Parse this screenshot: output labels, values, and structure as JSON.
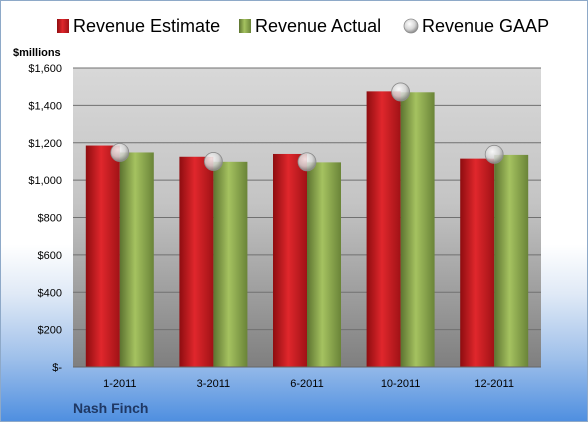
{
  "chart_data": {
    "type": "bar",
    "ylabel": "$millions",
    "company": "Nash Finch",
    "categories": [
      "1-2011",
      "3-2011",
      "6-2011",
      "10-2011",
      "12-2011"
    ],
    "series": [
      {
        "name": "Revenue Estimate",
        "kind": "bar",
        "color": "#c8161d",
        "values": [
          1185,
          1125,
          1140,
          1475,
          1115
        ]
      },
      {
        "name": "Revenue Actual",
        "kind": "bar",
        "color": "#8aa64a",
        "values": [
          1148,
          1098,
          1095,
          1470,
          1135
        ]
      },
      {
        "name": "Revenue GAAP",
        "kind": "marker",
        "color": "#c9c9c9",
        "values": [
          1148,
          1100,
          1098,
          1472,
          1138
        ]
      }
    ],
    "ylim": [
      0,
      1600
    ],
    "yticks": [
      0,
      200,
      400,
      600,
      800,
      1000,
      1200,
      1400,
      1600
    ],
    "ytick_labels": [
      "$-",
      "$200",
      "$400",
      "$600",
      "$800",
      "$1,000",
      "$1,200",
      "$1,400",
      "$1,600"
    ],
    "grid": true,
    "legend_position": "top"
  }
}
